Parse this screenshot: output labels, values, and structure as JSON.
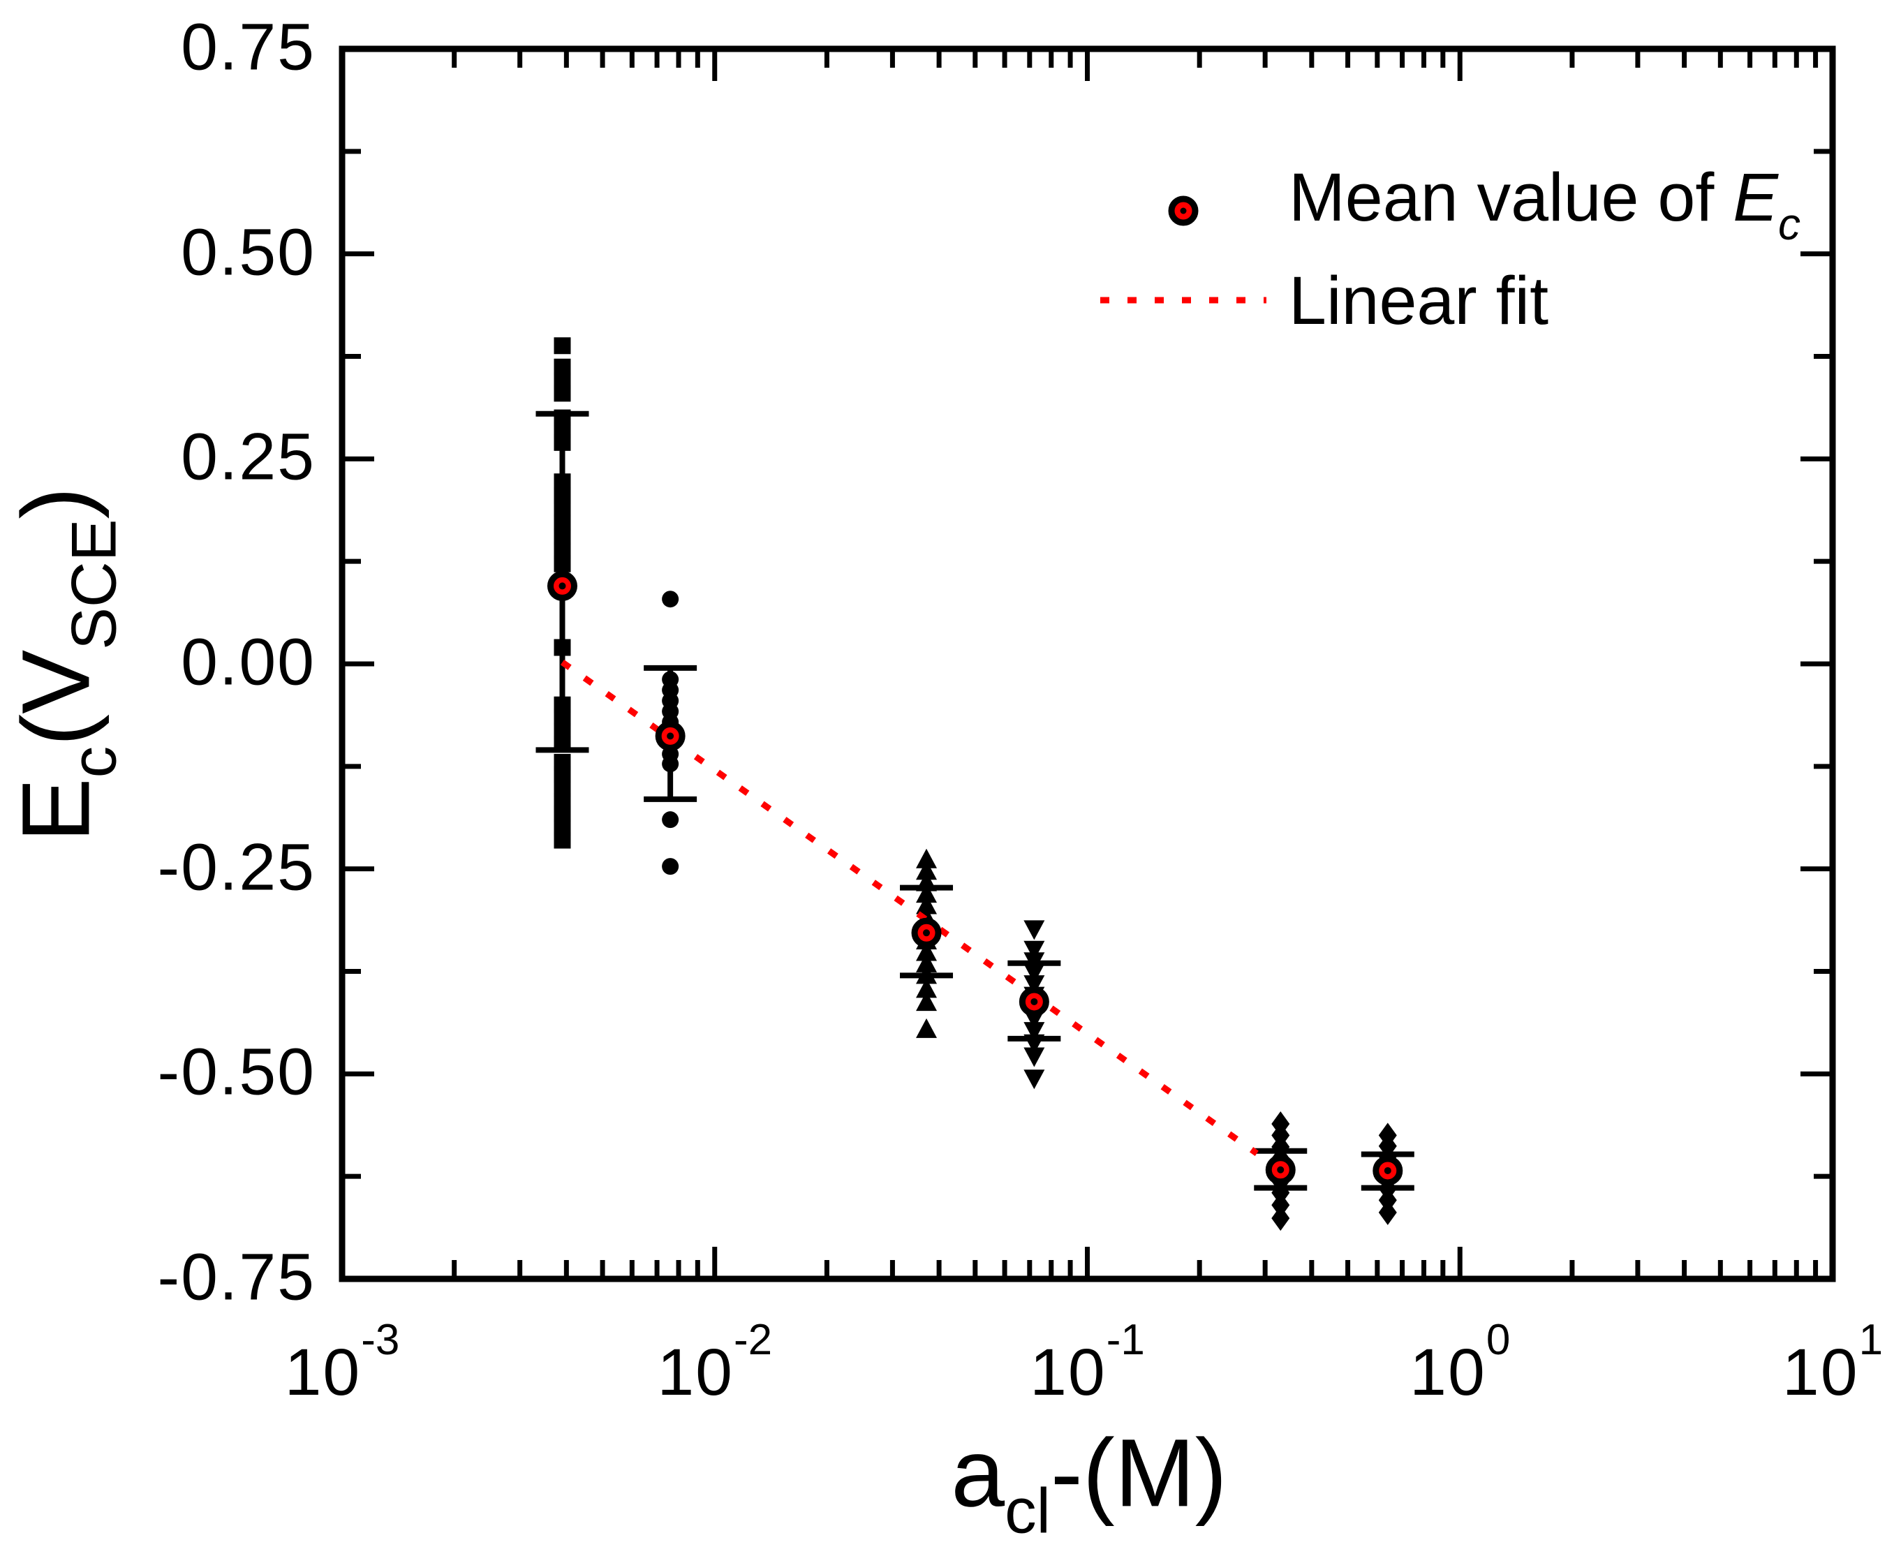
{
  "figure": {
    "background": "#ffffff"
  },
  "chart_data": {
    "type": "scatter",
    "title": "",
    "grid": false,
    "legend_position": "top-right-inside",
    "x_axis": {
      "label": "a_cl- (M)",
      "label_parts": {
        "base": "a",
        "sub": "cl",
        "rest": "-(M)"
      },
      "scale": "log",
      "min_exp": -3,
      "max_exp": 1,
      "power_base": "10",
      "major_tick_exponents": [
        -3,
        -2,
        -1,
        0,
        1
      ],
      "minor_tick_multiples": [
        2,
        3,
        4,
        5,
        6,
        7,
        8,
        9
      ]
    },
    "y_axis": {
      "label": "Ec (V_SCE)",
      "label_parts": {
        "base": "E",
        "sub": "c",
        "mid": "(V",
        "sub2": "SCE",
        "end": ")"
      },
      "min": -0.75,
      "max": 0.75,
      "ticks": [
        {
          "value": 0.75,
          "label": "0.75"
        },
        {
          "value": 0.5,
          "label": "0.50"
        },
        {
          "value": 0.25,
          "label": "0.25"
        },
        {
          "value": 0.0,
          "label": "0.00"
        },
        {
          "value": -0.25,
          "label": "-0.25"
        },
        {
          "value": -0.5,
          "label": "-0.50"
        },
        {
          "value": -0.75,
          "label": "-0.75"
        }
      ],
      "minor_ticks": [
        0.625,
        0.375,
        0.125,
        -0.125,
        -0.375,
        -0.625
      ]
    },
    "series": [
      {
        "marker": "square",
        "x": 0.0039,
        "mean": 0.095,
        "err_top": 0.305,
        "err_bottom": -0.105,
        "points": [
          0.388,
          0.362,
          0.345,
          0.33,
          0.3,
          0.285,
          0.27,
          0.222,
          0.205,
          0.19,
          0.172,
          0.155,
          0.138,
          0.122,
          0.02,
          -0.05,
          -0.065,
          -0.082,
          -0.098,
          -0.12,
          -0.135,
          -0.152,
          -0.168,
          -0.183,
          -0.2,
          -0.215
        ]
      },
      {
        "marker": "circle",
        "x": 0.0076,
        "mean": -0.088,
        "err_top": -0.005,
        "err_bottom": -0.165,
        "points": [
          0.079,
          -0.019,
          -0.032,
          -0.045,
          -0.058,
          -0.071,
          -0.084,
          -0.097,
          -0.11,
          -0.122,
          -0.19,
          -0.247
        ]
      },
      {
        "marker": "triangle-up",
        "x": 0.037,
        "mean": -0.328,
        "err_top": -0.273,
        "err_bottom": -0.38,
        "points": [
          -0.239,
          -0.253,
          -0.267,
          -0.281,
          -0.295,
          -0.31,
          -0.324,
          -0.338,
          -0.352,
          -0.366,
          -0.38,
          -0.397,
          -0.413,
          -0.446
        ]
      },
      {
        "marker": "triangle-down",
        "x": 0.072,
        "mean": -0.412,
        "err_top": -0.365,
        "err_bottom": -0.457,
        "points": [
          -0.323,
          -0.348,
          -0.362,
          -0.376,
          -0.39,
          -0.404,
          -0.418,
          -0.432,
          -0.447,
          -0.462,
          -0.478,
          -0.505
        ]
      },
      {
        "marker": "diamond",
        "x": 0.33,
        "mean": -0.617,
        "err_top": -0.594,
        "err_bottom": -0.639,
        "points": [
          -0.561,
          -0.575,
          -0.589,
          -0.603,
          -0.617,
          -0.631,
          -0.645,
          -0.66,
          -0.676
        ]
      },
      {
        "marker": "diamond",
        "x": 0.64,
        "mean": -0.618,
        "err_top": -0.598,
        "err_bottom": -0.639,
        "points": [
          -0.575,
          -0.588,
          -0.601,
          -0.614,
          -0.627,
          -0.64,
          -0.654,
          -0.669
        ]
      }
    ],
    "fit_line": {
      "x_start": 0.0039,
      "v_start": 0.002,
      "x_end": 0.285,
      "v_end": -0.597
    },
    "legend": {
      "mean": {
        "pre": "Mean value of ",
        "var": "E",
        "sub": "c"
      },
      "fit": {
        "label": "Linear fit"
      }
    },
    "colors": {
      "ink": "#000000",
      "accent": "#ff0000",
      "background": "#ffffff"
    }
  }
}
